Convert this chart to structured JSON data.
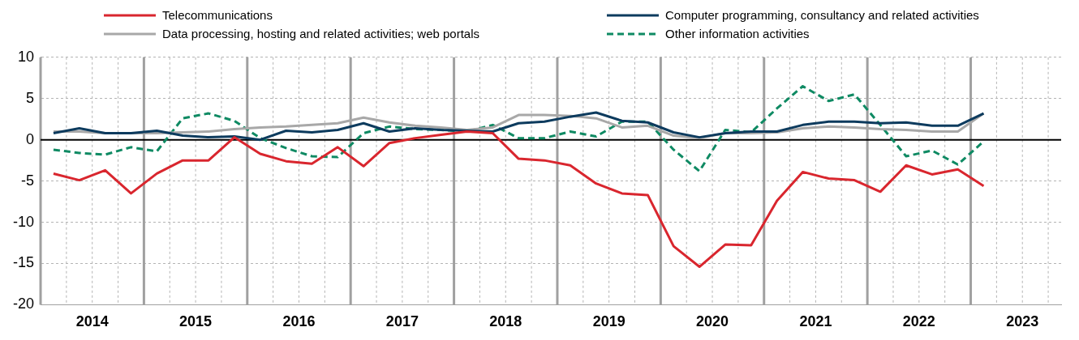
{
  "chart_data": {
    "type": "line",
    "x": [
      2014.125,
      2014.375,
      2014.625,
      2014.875,
      2015.125,
      2015.375,
      2015.625,
      2015.875,
      2016.125,
      2016.375,
      2016.625,
      2016.875,
      2017.125,
      2017.375,
      2017.625,
      2017.875,
      2018.125,
      2018.375,
      2018.625,
      2018.875,
      2019.125,
      2019.375,
      2019.625,
      2019.875,
      2020.125,
      2020.375,
      2020.625,
      2020.875,
      2021.125,
      2021.375,
      2021.625,
      2021.875,
      2022.125,
      2022.375,
      2022.625,
      2022.875,
      2023.125
    ],
    "series": [
      {
        "name": "Telecommunications",
        "color": "#d9262e",
        "line_style": "solid",
        "values": [
          -4.1,
          -4.9,
          -3.7,
          -6.5,
          -4.1,
          -2.5,
          -2.5,
          0.3,
          -1.7,
          -2.6,
          -2.9,
          -0.9,
          -3.2,
          -0.4,
          0.2,
          0.6,
          1.0,
          0.8,
          -2.3,
          -2.5,
          -3.1,
          -5.3,
          -6.5,
          -6.7,
          -12.9,
          -15.4,
          -12.7,
          -12.8,
          -7.4,
          -3.9,
          -4.7,
          -4.9,
          -6.3,
          -3.1,
          -4.2,
          -3.6,
          -5.6
        ]
      },
      {
        "name": "Computer programming, consultancy and related activities",
        "color": "#0d3b5e",
        "line_style": "solid",
        "values": [
          0.8,
          1.4,
          0.8,
          0.8,
          1.1,
          0.5,
          0.3,
          0.4,
          0.0,
          1.1,
          0.9,
          1.2,
          2.0,
          1.0,
          1.4,
          1.2,
          1.1,
          1.0,
          2.0,
          2.2,
          2.8,
          3.3,
          2.3,
          2.1,
          0.9,
          0.3,
          0.8,
          1.0,
          1.0,
          1.8,
          2.2,
          2.2,
          2.0,
          2.1,
          1.7,
          1.7,
          3.2
        ]
      },
      {
        "name": "Data processing, hosting and related activities; web portals",
        "color": "#a8a8a8",
        "line_style": "solid",
        "values": [
          1.0,
          1.0,
          0.8,
          0.8,
          0.8,
          0.9,
          1.0,
          1.3,
          1.5,
          1.6,
          1.8,
          2.0,
          2.7,
          2.1,
          1.7,
          1.5,
          1.2,
          1.5,
          3.0,
          3.0,
          2.9,
          2.6,
          1.5,
          1.7,
          0.5,
          0.2,
          0.8,
          0.8,
          0.9,
          1.4,
          1.6,
          1.5,
          1.3,
          1.2,
          1.0,
          1.0,
          3.2
        ]
      },
      {
        "name": "Other information activities",
        "color": "#0f8a63",
        "line_style": "dashed",
        "values": [
          -1.2,
          -1.6,
          -1.8,
          -0.9,
          -1.4,
          2.6,
          3.2,
          2.3,
          0.2,
          -1.0,
          -2.0,
          -2.1,
          0.8,
          1.6,
          1.3,
          1.2,
          1.0,
          1.8,
          0.2,
          0.2,
          1.0,
          0.4,
          2.2,
          2.2,
          -1.2,
          -3.8,
          1.2,
          0.9,
          3.8,
          6.5,
          4.7,
          5.5,
          1.8,
          -2.0,
          -1.3,
          -3.0,
          -0.2
        ]
      }
    ],
    "xlim": [
      2014,
      2023.875
    ],
    "xticks": [
      {
        "value": 2014.5,
        "label": "2014"
      },
      {
        "value": 2015.5,
        "label": "2015"
      },
      {
        "value": 2016.5,
        "label": "2016"
      },
      {
        "value": 2017.5,
        "label": "2017"
      },
      {
        "value": 2018.5,
        "label": "2018"
      },
      {
        "value": 2019.5,
        "label": "2019"
      },
      {
        "value": 2020.5,
        "label": "2020"
      },
      {
        "value": 2021.5,
        "label": "2021"
      },
      {
        "value": 2022.5,
        "label": "2022"
      },
      {
        "value": 2023.5,
        "label": "2023"
      }
    ],
    "ylim": [
      -20,
      10
    ],
    "yticks": [
      -20,
      -15,
      -10,
      -5,
      0,
      5,
      10
    ],
    "ref_lines": [
      {
        "axis": "y",
        "value": 0,
        "color": "#000000"
      }
    ],
    "grid": true,
    "legend": "top",
    "marker": "none"
  }
}
